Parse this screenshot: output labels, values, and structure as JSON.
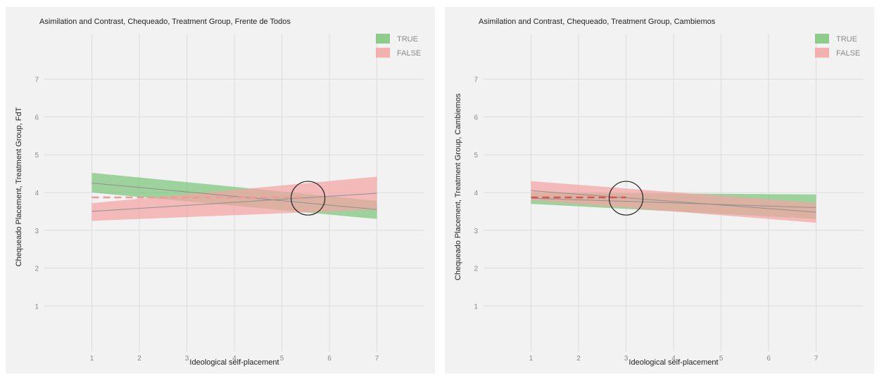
{
  "chart_data": [
    {
      "type": "line",
      "title": "Asimilation and Contrast, Chequeado, Treatment Group, Frente de Todos",
      "xlabel": "Ideological self-placement",
      "ylabel": "Chequeado Placement, Treatment Group, FdT",
      "xlim": [
        0,
        8
      ],
      "ylim": [
        -0.2,
        8.2
      ],
      "xticks": [
        1,
        2,
        3,
        4,
        5,
        6,
        7
      ],
      "yticks": [
        1,
        2,
        3,
        4,
        5,
        6,
        7
      ],
      "grid": true,
      "legend_position": "top-right",
      "series": [
        {
          "name": "TRUE",
          "color": "#7dc57a",
          "x": [
            1,
            7
          ],
          "y": [
            4.25,
            3.55
          ],
          "lower": [
            4.0,
            3.3
          ],
          "upper": [
            4.52,
            3.78
          ]
        },
        {
          "name": "FALSE",
          "color": "#f4a3a3",
          "x": [
            1,
            7
          ],
          "y": [
            3.5,
            3.98
          ],
          "lower": [
            3.25,
            3.55
          ],
          "upper": [
            3.72,
            4.42
          ]
        }
      ],
      "reference_line": {
        "y": 3.87,
        "x": [
          1,
          5.5
        ],
        "style": "dashed",
        "color": "#e99b9b"
      },
      "highlight_circle": {
        "x": 5.55,
        "y": 3.85
      }
    },
    {
      "type": "line",
      "title": "Asimilation and Contrast, Chequeado, Treatment Group, Cambiemos",
      "xlabel": "Ideological self-placement",
      "ylabel": "Chequeado Placement, Treatment Group, Cambiemos",
      "xlim": [
        0,
        8
      ],
      "ylim": [
        -0.2,
        8.2
      ],
      "xticks": [
        1,
        2,
        3,
        4,
        5,
        6,
        7
      ],
      "yticks": [
        1,
        2,
        3,
        4,
        5,
        6,
        7
      ],
      "grid": true,
      "legend_position": "top-right",
      "series": [
        {
          "name": "TRUE",
          "color": "#7dc57a",
          "x": [
            1,
            7
          ],
          "y": [
            3.85,
            3.6
          ],
          "lower": [
            3.7,
            3.3
          ],
          "upper": [
            4.0,
            3.95
          ]
        },
        {
          "name": "FALSE",
          "color": "#f4a3a3",
          "x": [
            1,
            7
          ],
          "y": [
            4.05,
            3.48
          ],
          "lower": [
            3.8,
            3.2
          ],
          "upper": [
            4.3,
            3.72
          ]
        }
      ],
      "reference_line": {
        "y": 3.87,
        "x": [
          1,
          3
        ],
        "style": "dashed",
        "color": "#d9534f"
      },
      "highlight_circle": {
        "x": 3.0,
        "y": 3.85
      }
    }
  ]
}
